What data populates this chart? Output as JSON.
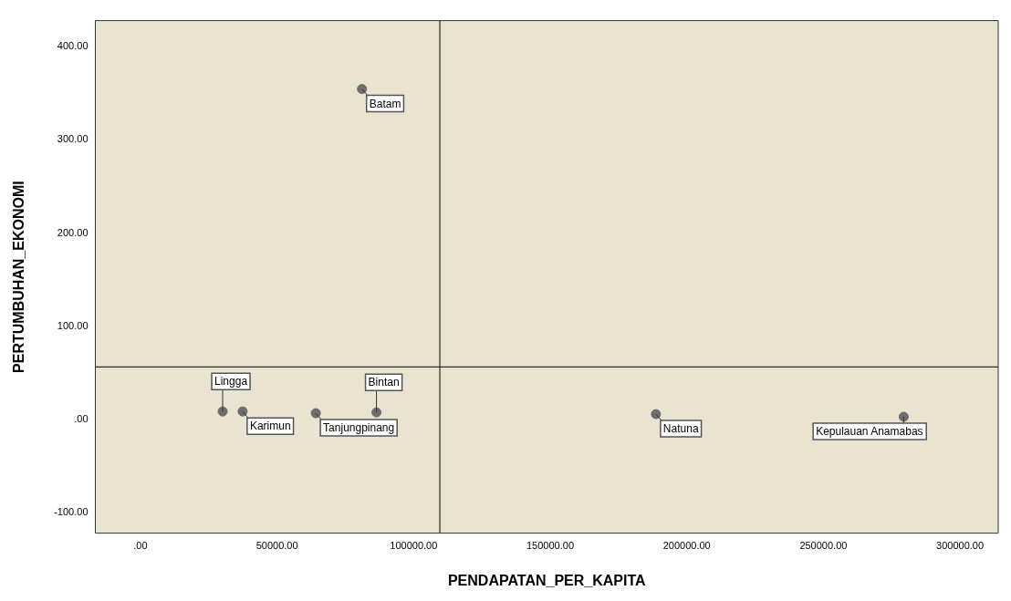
{
  "chart_data": {
    "type": "scatter",
    "xlabel": "PENDAPATAN_PER_KAPITA",
    "ylabel": "PERTUMBUHAN_EKONOMI",
    "x": [
      81100,
      37400,
      30100,
      64200,
      86400,
      188700,
      279400
    ],
    "values": [
      354.6,
      8.6,
      8.6,
      6.7,
      7.6,
      5.7,
      2.9
    ],
    "color": "#6e6e6e",
    "marker": "circle",
    "grid": false,
    "legend": false,
    "xlim": [
      -16500,
      314000
    ],
    "xticks": [
      {
        "value": 0,
        "label": ".00"
      },
      {
        "value": 50000,
        "label": "50000.00"
      },
      {
        "value": 100000,
        "label": "100000.00"
      },
      {
        "value": 150000,
        "label": "150000.00"
      },
      {
        "value": 200000,
        "label": "200000.00"
      },
      {
        "value": 250000,
        "label": "250000.00"
      },
      {
        "value": 300000,
        "label": "300000.00"
      }
    ],
    "ylim": [
      -122,
      428
    ],
    "yticks": [
      {
        "value": -100,
        "label": "-100.00"
      },
      {
        "value": 0,
        "label": ".00"
      },
      {
        "value": 100,
        "label": "100.00"
      },
      {
        "value": 200,
        "label": "200.00"
      },
      {
        "value": 300,
        "label": "300.00"
      },
      {
        "value": 400,
        "label": "400.00"
      }
    ],
    "ref_lines": [
      {
        "axis": "x",
        "value": 109600,
        "color": "#000000"
      },
      {
        "axis": "y",
        "value": 56.4,
        "color": "#000000"
      }
    ],
    "annotations": [
      {
        "text": "Batam",
        "x": 81100,
        "y": 354.6
      },
      {
        "text": "Karimun",
        "x": 37400,
        "y": 8.6
      },
      {
        "text": "Lingga",
        "x": 30100,
        "y": 8.6
      },
      {
        "text": "Tanjungpinang",
        "x": 64200,
        "y": 6.7
      },
      {
        "text": "Bintan",
        "x": 86400,
        "y": 7.6
      },
      {
        "text": "Natuna",
        "x": 188700,
        "y": 5.7
      },
      {
        "text": "Kepulauan Anamabas",
        "x": 279400,
        "y": 2.9
      }
    ]
  }
}
